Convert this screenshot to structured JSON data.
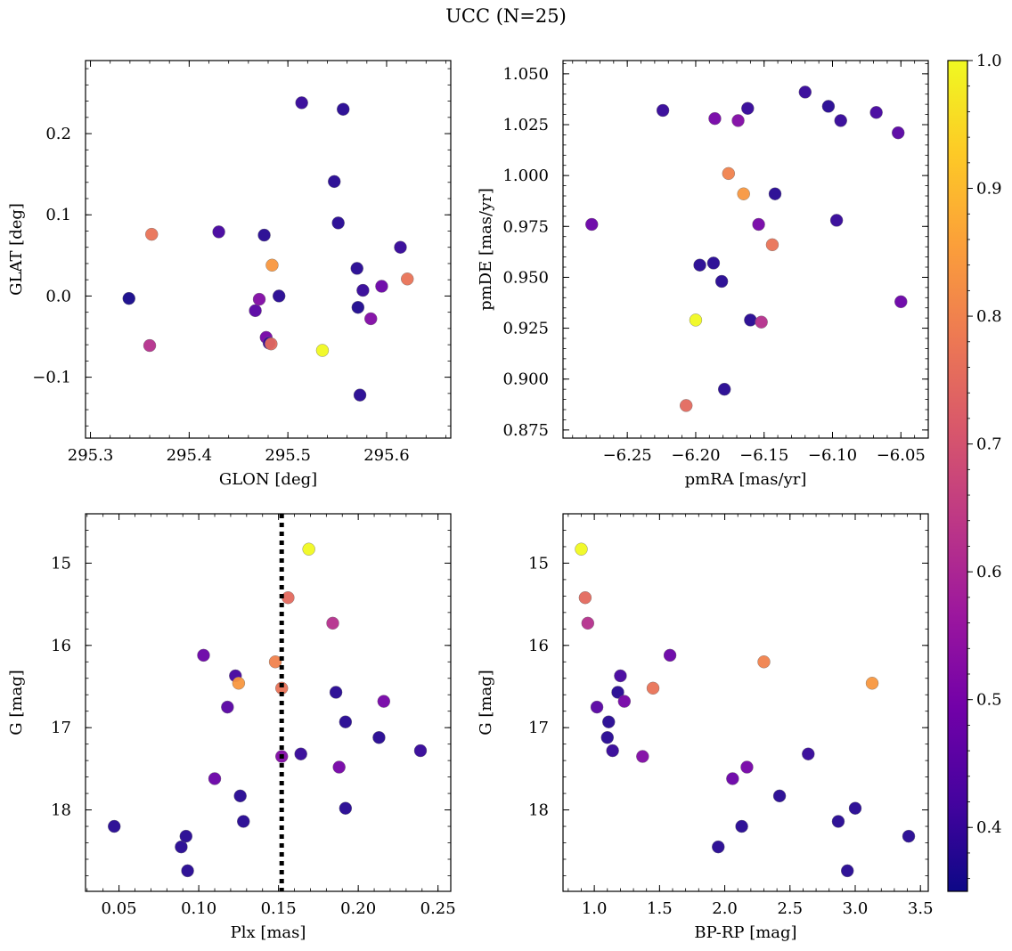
{
  "figure": {
    "title": "UCC (N=25)"
  },
  "chart_data": [
    {
      "type": "scatter",
      "xlabel": "GLON [deg]",
      "ylabel": "GLAT [deg]",
      "xlim": [
        295.295,
        295.665
      ],
      "ylim": [
        -0.175,
        0.29
      ],
      "xticks": [
        295.3,
        295.4,
        295.5,
        295.6
      ],
      "xtick_labels": [
        "295.3",
        "295.4",
        "295.5",
        "295.6"
      ],
      "yticks": [
        -0.1,
        0.0,
        0.1,
        0.2
      ],
      "ytick_labels": [
        "−0.1",
        "0.0",
        "0.1",
        "0.2"
      ],
      "points": [
        {
          "x": 295.339,
          "y": -0.003,
          "c": 0.36
        },
        {
          "x": 295.36,
          "y": -0.061,
          "c": 0.62
        },
        {
          "x": 295.362,
          "y": 0.076,
          "c": 0.77
        },
        {
          "x": 295.43,
          "y": 0.079,
          "c": 0.42
        },
        {
          "x": 295.467,
          "y": -0.018,
          "c": 0.45
        },
        {
          "x": 295.471,
          "y": -0.004,
          "c": 0.52
        },
        {
          "x": 295.476,
          "y": 0.075,
          "c": 0.38
        },
        {
          "x": 295.478,
          "y": -0.051,
          "c": 0.5
        },
        {
          "x": 295.481,
          "y": -0.058,
          "c": 0.4
        },
        {
          "x": 295.483,
          "y": -0.059,
          "c": 0.75
        },
        {
          "x": 295.484,
          "y": 0.038,
          "c": 0.84
        },
        {
          "x": 295.491,
          "y": 0.0,
          "c": 0.38
        },
        {
          "x": 295.514,
          "y": 0.238,
          "c": 0.4
        },
        {
          "x": 295.535,
          "y": -0.067,
          "c": 1.0
        },
        {
          "x": 295.547,
          "y": 0.141,
          "c": 0.38
        },
        {
          "x": 295.551,
          "y": 0.09,
          "c": 0.38
        },
        {
          "x": 295.556,
          "y": 0.23,
          "c": 0.38
        },
        {
          "x": 295.57,
          "y": 0.034,
          "c": 0.38
        },
        {
          "x": 295.571,
          "y": -0.014,
          "c": 0.37
        },
        {
          "x": 295.573,
          "y": -0.122,
          "c": 0.38
        },
        {
          "x": 295.576,
          "y": 0.007,
          "c": 0.4
        },
        {
          "x": 295.584,
          "y": -0.028,
          "c": 0.52
        },
        {
          "x": 295.595,
          "y": 0.012,
          "c": 0.48
        },
        {
          "x": 295.614,
          "y": 0.06,
          "c": 0.4
        },
        {
          "x": 295.621,
          "y": 0.021,
          "c": 0.77
        }
      ]
    },
    {
      "type": "scatter",
      "xlabel": "pmRA [mas/yr]",
      "ylabel": "pmDE [mas/yr]",
      "xlim": [
        -6.297,
        -6.03
      ],
      "ylim": [
        0.871,
        1.0565
      ],
      "xticks": [
        -6.25,
        -6.2,
        -6.15,
        -6.1,
        -6.05
      ],
      "xtick_labels": [
        "−6.25",
        "−6.20",
        "−6.15",
        "−6.10",
        "−6.05"
      ],
      "yticks": [
        0.875,
        0.9,
        0.925,
        0.95,
        0.975,
        1.0,
        1.025,
        1.05
      ],
      "ytick_labels": [
        "0.875",
        "0.900",
        "0.925",
        "0.950",
        "0.975",
        "1.000",
        "1.025",
        "1.050"
      ],
      "points": [
        {
          "x": -6.276,
          "y": 0.976,
          "c": 0.48
        },
        {
          "x": -6.224,
          "y": 1.032,
          "c": 0.4
        },
        {
          "x": -6.207,
          "y": 0.887,
          "c": 0.75
        },
        {
          "x": -6.2,
          "y": 0.929,
          "c": 1.0
        },
        {
          "x": -6.197,
          "y": 0.956,
          "c": 0.38
        },
        {
          "x": -6.187,
          "y": 0.957,
          "c": 0.38
        },
        {
          "x": -6.186,
          "y": 1.028,
          "c": 0.5
        },
        {
          "x": -6.181,
          "y": 0.948,
          "c": 0.38
        },
        {
          "x": -6.179,
          "y": 0.895,
          "c": 0.38
        },
        {
          "x": -6.176,
          "y": 1.001,
          "c": 0.8
        },
        {
          "x": -6.169,
          "y": 1.027,
          "c": 0.52
        },
        {
          "x": -6.165,
          "y": 0.991,
          "c": 0.84
        },
        {
          "x": -6.162,
          "y": 1.033,
          "c": 0.4
        },
        {
          "x": -6.16,
          "y": 0.929,
          "c": 0.38
        },
        {
          "x": -6.154,
          "y": 0.976,
          "c": 0.5
        },
        {
          "x": -6.152,
          "y": 0.928,
          "c": 0.62
        },
        {
          "x": -6.144,
          "y": 0.966,
          "c": 0.77
        },
        {
          "x": -6.142,
          "y": 0.991,
          "c": 0.38
        },
        {
          "x": -6.12,
          "y": 1.041,
          "c": 0.4
        },
        {
          "x": -6.103,
          "y": 1.034,
          "c": 0.38
        },
        {
          "x": -6.097,
          "y": 0.978,
          "c": 0.4
        },
        {
          "x": -6.094,
          "y": 1.027,
          "c": 0.4
        },
        {
          "x": -6.068,
          "y": 1.031,
          "c": 0.42
        },
        {
          "x": -6.052,
          "y": 1.021,
          "c": 0.45
        },
        {
          "x": -6.05,
          "y": 0.938,
          "c": 0.48
        }
      ]
    },
    {
      "type": "scatter",
      "xlabel": "Plx [mas]",
      "ylabel": "G [mag]",
      "xlim": [
        0.029,
        0.258
      ],
      "ylim": [
        18.99,
        14.4
      ],
      "y_inverted": true,
      "xticks": [
        0.05,
        0.1,
        0.15,
        0.2,
        0.25
      ],
      "xtick_labels": [
        "0.05",
        "0.10",
        "0.15",
        "0.20",
        "0.25"
      ],
      "yticks": [
        15,
        16,
        17,
        18
      ],
      "ytick_labels": [
        "15",
        "16",
        "17",
        "18"
      ],
      "vline": {
        "x": 0.152,
        "style": "dotted",
        "color": "#000000"
      },
      "points": [
        {
          "x": 0.047,
          "y": 18.2,
          "c": 0.38
        },
        {
          "x": 0.089,
          "y": 18.45,
          "c": 0.38
        },
        {
          "x": 0.092,
          "y": 18.32,
          "c": 0.38
        },
        {
          "x": 0.093,
          "y": 18.74,
          "c": 0.38
        },
        {
          "x": 0.103,
          "y": 16.12,
          "c": 0.48
        },
        {
          "x": 0.11,
          "y": 17.62,
          "c": 0.48
        },
        {
          "x": 0.118,
          "y": 16.75,
          "c": 0.45
        },
        {
          "x": 0.123,
          "y": 16.37,
          "c": 0.42
        },
        {
          "x": 0.125,
          "y": 16.46,
          "c": 0.84
        },
        {
          "x": 0.126,
          "y": 17.83,
          "c": 0.38
        },
        {
          "x": 0.128,
          "y": 18.14,
          "c": 0.38
        },
        {
          "x": 0.148,
          "y": 16.2,
          "c": 0.8
        },
        {
          "x": 0.152,
          "y": 16.52,
          "c": 0.77
        },
        {
          "x": 0.152,
          "y": 17.35,
          "c": 0.52
        },
        {
          "x": 0.156,
          "y": 15.42,
          "c": 0.75
        },
        {
          "x": 0.164,
          "y": 17.32,
          "c": 0.4
        },
        {
          "x": 0.169,
          "y": 14.83,
          "c": 1.0
        },
        {
          "x": 0.184,
          "y": 15.73,
          "c": 0.62
        },
        {
          "x": 0.186,
          "y": 16.57,
          "c": 0.38
        },
        {
          "x": 0.188,
          "y": 17.48,
          "c": 0.5
        },
        {
          "x": 0.192,
          "y": 16.93,
          "c": 0.38
        },
        {
          "x": 0.192,
          "y": 17.98,
          "c": 0.38
        },
        {
          "x": 0.213,
          "y": 17.12,
          "c": 0.38
        },
        {
          "x": 0.216,
          "y": 16.68,
          "c": 0.5
        },
        {
          "x": 0.239,
          "y": 17.28,
          "c": 0.4
        }
      ]
    },
    {
      "type": "scatter",
      "xlabel": "BP-RP [mag]",
      "ylabel": "G [mag]",
      "xlim": [
        0.76,
        3.56
      ],
      "ylim": [
        18.99,
        14.4
      ],
      "y_inverted": true,
      "xticks": [
        1.0,
        1.5,
        2.0,
        2.5,
        3.0,
        3.5
      ],
      "xtick_labels": [
        "1.0",
        "1.5",
        "2.0",
        "2.5",
        "3.0",
        "3.5"
      ],
      "yticks": [
        15,
        16,
        17,
        18
      ],
      "ytick_labels": [
        "15",
        "16",
        "17",
        "18"
      ],
      "points": [
        {
          "x": 0.9,
          "y": 14.83,
          "c": 1.0
        },
        {
          "x": 0.93,
          "y": 15.42,
          "c": 0.75
        },
        {
          "x": 0.95,
          "y": 15.73,
          "c": 0.62
        },
        {
          "x": 1.02,
          "y": 16.75,
          "c": 0.45
        },
        {
          "x": 1.1,
          "y": 17.12,
          "c": 0.38
        },
        {
          "x": 1.11,
          "y": 16.93,
          "c": 0.38
        },
        {
          "x": 1.14,
          "y": 17.28,
          "c": 0.4
        },
        {
          "x": 1.18,
          "y": 16.57,
          "c": 0.38
        },
        {
          "x": 1.2,
          "y": 16.37,
          "c": 0.42
        },
        {
          "x": 1.23,
          "y": 16.68,
          "c": 0.5
        },
        {
          "x": 1.37,
          "y": 17.35,
          "c": 0.52
        },
        {
          "x": 1.45,
          "y": 16.52,
          "c": 0.77
        },
        {
          "x": 1.58,
          "y": 16.12,
          "c": 0.48
        },
        {
          "x": 1.95,
          "y": 18.45,
          "c": 0.38
        },
        {
          "x": 2.06,
          "y": 17.62,
          "c": 0.48
        },
        {
          "x": 2.13,
          "y": 18.2,
          "c": 0.38
        },
        {
          "x": 2.17,
          "y": 17.48,
          "c": 0.5
        },
        {
          "x": 2.3,
          "y": 16.2,
          "c": 0.8
        },
        {
          "x": 2.42,
          "y": 17.83,
          "c": 0.38
        },
        {
          "x": 2.64,
          "y": 17.32,
          "c": 0.4
        },
        {
          "x": 2.87,
          "y": 18.14,
          "c": 0.38
        },
        {
          "x": 2.94,
          "y": 18.74,
          "c": 0.38
        },
        {
          "x": 3.0,
          "y": 17.98,
          "c": 0.38
        },
        {
          "x": 3.13,
          "y": 16.46,
          "c": 0.84
        },
        {
          "x": 3.41,
          "y": 18.32,
          "c": 0.38
        }
      ]
    }
  ],
  "colorbar": {
    "range": [
      0.35,
      1.0
    ],
    "colormap": "plasma",
    "ticks": [
      0.4,
      0.5,
      0.6,
      0.7,
      0.8,
      0.9,
      1.0
    ],
    "tick_labels": [
      "0.4",
      "0.5",
      "0.6",
      "0.7",
      "0.8",
      "0.9",
      "1.0"
    ],
    "colors": [
      "#0d0887",
      "#46039f",
      "#7201a8",
      "#9c179e",
      "#bd3786",
      "#d8576b",
      "#ed7953",
      "#fb9f3a",
      "#fdca26",
      "#f0f921"
    ]
  }
}
